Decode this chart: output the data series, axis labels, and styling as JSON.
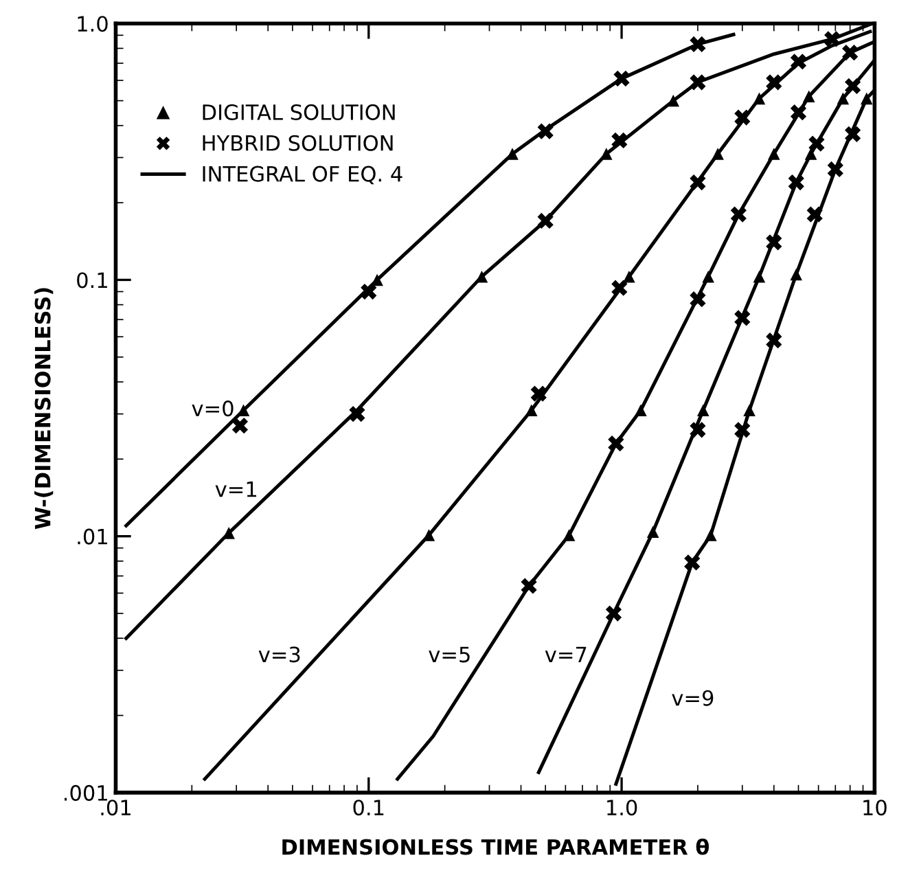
{
  "chart_data": {
    "type": "line",
    "xlabel": "DIMENSIONLESS TIME PARAMETER θ",
    "ylabel": "W-(DIMENSIONLESS)",
    "log": "xy",
    "grid": false,
    "legend": "top left",
    "xlim": [
      0.01,
      10
    ],
    "ylim": [
      0.001,
      1
    ],
    "xticks": [
      {
        "value": 0.01,
        "label": ".01"
      },
      0.1,
      {
        "value": 1,
        "label": "1.0"
      },
      10
    ],
    "yticks": [
      {
        "value": 0.001,
        "label": ".001"
      },
      {
        "value": 0.01,
        "label": ".01"
      },
      0.1,
      {
        "value": 1,
        "label": "1.0"
      }
    ],
    "series": [
      {
        "name": "DIGITAL SOLUTION",
        "type": "scatter",
        "marker": "triangle",
        "color": "#000000",
        "x": [
          0.032,
          0.108,
          0.37,
          0.028,
          0.28,
          0.87,
          1.6,
          0.173,
          0.44,
          1.07,
          2.4,
          3.5,
          0.62,
          1.19,
          2.2,
          4.0,
          5.5,
          1.33,
          2.1,
          3.5,
          5.6,
          7.5,
          2.25,
          3.2,
          4.9,
          9.3
        ],
        "values": [
          0.031,
          0.1,
          0.31,
          0.0103,
          0.103,
          0.31,
          0.5,
          0.0101,
          0.031,
          0.103,
          0.31,
          0.51,
          0.0101,
          0.031,
          0.103,
          0.31,
          0.52,
          0.0104,
          0.031,
          0.103,
          0.31,
          0.51,
          0.0101,
          0.031,
          0.105,
          0.51
        ]
      },
      {
        "name": "HYBRID SOLUTION",
        "type": "scatter",
        "marker": "cross",
        "color": "#000000",
        "x": [
          0.031,
          0.1,
          0.5,
          1.0,
          2.0,
          0.09,
          0.5,
          0.98,
          2.0,
          6.8,
          0.47,
          0.98,
          2.0,
          3.0,
          4.0,
          5.0,
          0.43,
          0.95,
          2.0,
          2.9,
          5.0,
          8.0,
          0.93,
          2.0,
          3.0,
          4.0,
          4.9,
          5.9,
          8.2,
          1.9,
          3.0,
          4.0,
          5.8,
          7.0,
          8.2
        ],
        "values": [
          0.027,
          0.09,
          0.38,
          0.61,
          0.83,
          0.03,
          0.17,
          0.35,
          0.59,
          0.87,
          0.036,
          0.093,
          0.24,
          0.43,
          0.59,
          0.71,
          0.0064,
          0.023,
          0.084,
          0.18,
          0.45,
          0.77,
          0.005,
          0.026,
          0.071,
          0.14,
          0.24,
          0.34,
          0.57,
          0.0079,
          0.026,
          0.058,
          0.18,
          0.27,
          0.37
        ]
      },
      {
        "name": "INTEGRAL OF EQ. 4",
        "marker": "none",
        "line_style": "solid",
        "color": "#000000",
        "x": [
          0.011,
          0.032,
          0.108,
          0.37,
          0.5,
          1.0,
          2.0,
          2.77,
          null,
          0.011,
          0.028,
          0.09,
          0.28,
          0.5,
          0.87,
          1.6,
          2.0,
          4.0,
          6.8,
          9.8,
          null,
          0.0225,
          0.173,
          0.44,
          1.07,
          2.4,
          3.5,
          5.0,
          6.8,
          9.6,
          null,
          0.13,
          0.18,
          0.43,
          0.62,
          0.95,
          1.19,
          2.2,
          2.9,
          4.0,
          5.5,
          8.0,
          10,
          null,
          0.47,
          0.93,
          1.33,
          2.1,
          3.5,
          4.9,
          5.6,
          7.5,
          10,
          null,
          0.95,
          1.9,
          2.25,
          3.2,
          4.9,
          7.0,
          9.3,
          10
        ],
        "values": [
          0.011,
          0.031,
          0.1,
          0.31,
          0.385,
          0.61,
          0.83,
          0.906,
          null,
          0.004,
          0.0103,
          0.031,
          0.103,
          0.17,
          0.31,
          0.5,
          0.59,
          0.76,
          0.87,
          1.0,
          null,
          0.00113,
          0.0101,
          0.031,
          0.103,
          0.31,
          0.51,
          0.7,
          0.82,
          0.93,
          null,
          0.00113,
          0.00166,
          0.0064,
          0.0101,
          0.023,
          0.031,
          0.103,
          0.18,
          0.31,
          0.52,
          0.77,
          0.85,
          null,
          0.0012,
          0.005,
          0.0104,
          0.031,
          0.103,
          0.24,
          0.31,
          0.51,
          0.72,
          null,
          0.00108,
          0.0079,
          0.0101,
          0.031,
          0.105,
          0.27,
          0.51,
          0.55
        ]
      }
    ],
    "annotations": [
      {
        "text": "v=0",
        "x": 0.032,
        "y": 0.031
      },
      {
        "text": "v=1",
        "x": 0.028,
        "y": 0.0103
      },
      {
        "text": "v=3",
        "x": 0.063,
        "y": 0.0034
      },
      {
        "text": "v=5",
        "x": 0.286,
        "y": 0.0034
      },
      {
        "text": "v=7",
        "x": 0.77,
        "y": 0.0034
      },
      {
        "text": "v=9",
        "x": 1.24,
        "y": 0.0023
      }
    ]
  }
}
